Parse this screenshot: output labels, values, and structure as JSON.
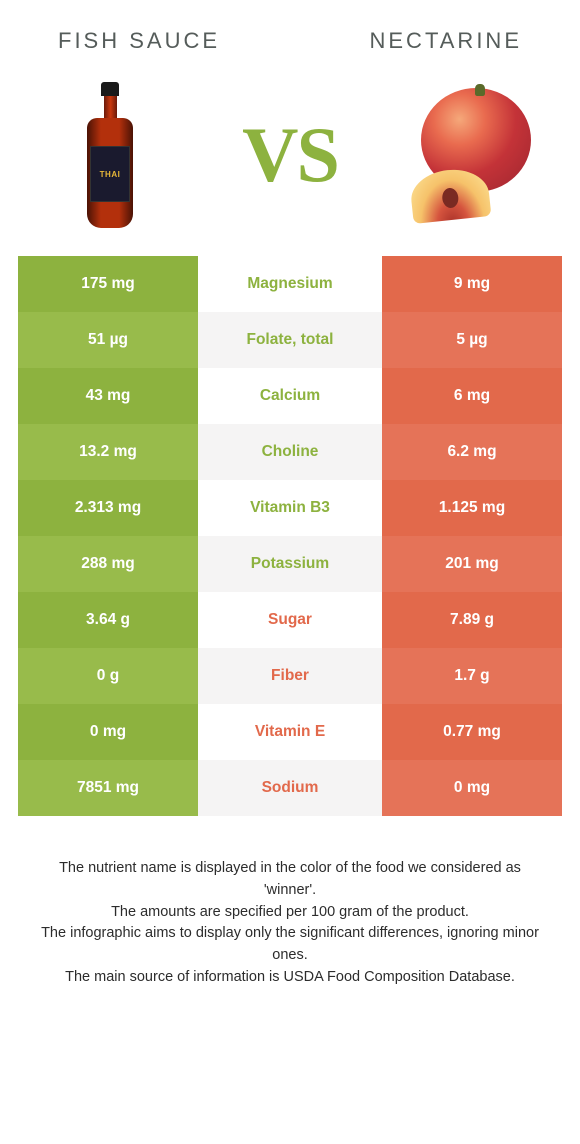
{
  "colors": {
    "left": {
      "base": "#8db23f",
      "alt": "#98bb4b"
    },
    "right": {
      "base": "#e2694b",
      "alt": "#e57358"
    },
    "left_text": "#8db23f",
    "right_text": "#e2694b"
  },
  "header": {
    "left": "Fish sauce",
    "right": "Nectarine"
  },
  "vs": "VS",
  "rows": [
    {
      "left": "175 mg",
      "label": "Magnesium",
      "right": "9 mg",
      "winner": "left"
    },
    {
      "left": "51 µg",
      "label": "Folate, total",
      "right": "5 µg",
      "winner": "left"
    },
    {
      "left": "43 mg",
      "label": "Calcium",
      "right": "6 mg",
      "winner": "left"
    },
    {
      "left": "13.2 mg",
      "label": "Choline",
      "right": "6.2 mg",
      "winner": "left"
    },
    {
      "left": "2.313 mg",
      "label": "Vitamin B3",
      "right": "1.125 mg",
      "winner": "left"
    },
    {
      "left": "288 mg",
      "label": "Potassium",
      "right": "201 mg",
      "winner": "left"
    },
    {
      "left": "3.64 g",
      "label": "Sugar",
      "right": "7.89 g",
      "winner": "right"
    },
    {
      "left": "0 g",
      "label": "Fiber",
      "right": "1.7 g",
      "winner": "right"
    },
    {
      "left": "0 mg",
      "label": "Vitamin E",
      "right": "0.77 mg",
      "winner": "right"
    },
    {
      "left": "7851 mg",
      "label": "Sodium",
      "right": "0 mg",
      "winner": "right"
    }
  ],
  "footer": [
    "The nutrient name is displayed in the color of the food we considered as 'winner'.",
    "The amounts are specified per 100 gram of the product.",
    "The infographic aims to display only the significant differences, ignoring minor ones.",
    "The main source of information is USDA Food Composition Database."
  ]
}
